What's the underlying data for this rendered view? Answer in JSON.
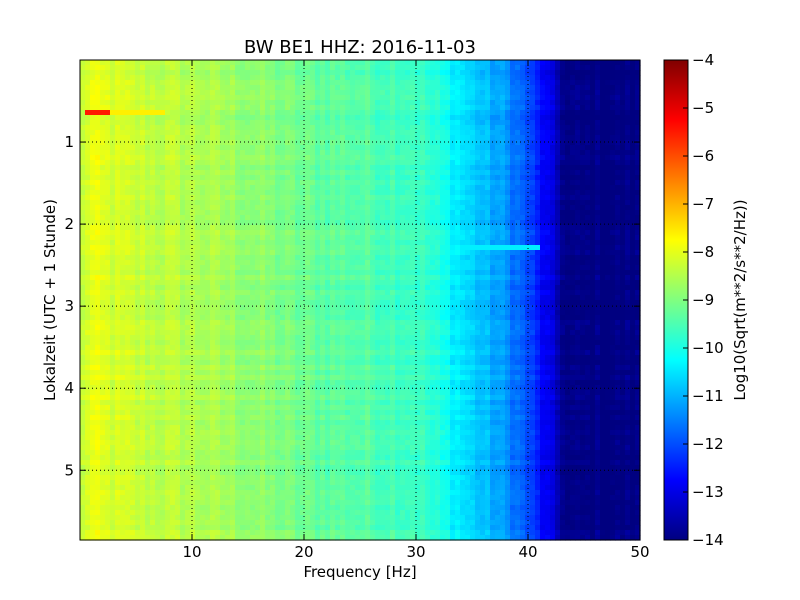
{
  "chart_data": {
    "type": "heatmap",
    "title": "BW BE1 HHZ: 2016-11-03",
    "xlabel": "Frequency [Hz]",
    "ylabel": "Lokalzeit (UTC + 1 Stunde)",
    "colorbar_label": "Log10(Sqrt(m**2/s**2/Hz))",
    "xlim": [
      0,
      50
    ],
    "ylim": [
      5.85,
      0
    ],
    "clim": [
      -14,
      -4
    ],
    "x_ticks": [
      10,
      20,
      30,
      40,
      50
    ],
    "y_ticks": [
      1,
      2,
      3,
      4,
      5
    ],
    "colorbar_ticks": [
      -4,
      -5,
      -6,
      -7,
      -8,
      -9,
      -10,
      -11,
      -12,
      -13,
      -14
    ],
    "colormap": "jet",
    "grid": true,
    "baseline_profile": {
      "frequency_hz": [
        0,
        0.5,
        1,
        2,
        5,
        10,
        15,
        20,
        25,
        30,
        33,
        35,
        38,
        40,
        41,
        42,
        43.5,
        50
      ],
      "log10_psd": [
        -8.6,
        -8.1,
        -8.0,
        -8.1,
        -8.3,
        -8.5,
        -8.8,
        -9.2,
        -9.4,
        -9.6,
        -10.2,
        -10.7,
        -11.3,
        -12.0,
        -12.6,
        -13.1,
        -14.0,
        -14.0
      ]
    },
    "features": [
      {
        "frequency_hz": [
          0.5,
          2.5
        ],
        "time_h": [
          0.6,
          0.7
        ],
        "log10_psd": -5.5
      },
      {
        "frequency_hz": [
          2.5,
          7.5
        ],
        "time_h": [
          0.6,
          0.68
        ],
        "log10_psd": -7.6
      },
      {
        "frequency_hz": [
          30,
          41
        ],
        "time_h": [
          2.27,
          2.33
        ],
        "log10_psd": -10.4
      }
    ]
  }
}
